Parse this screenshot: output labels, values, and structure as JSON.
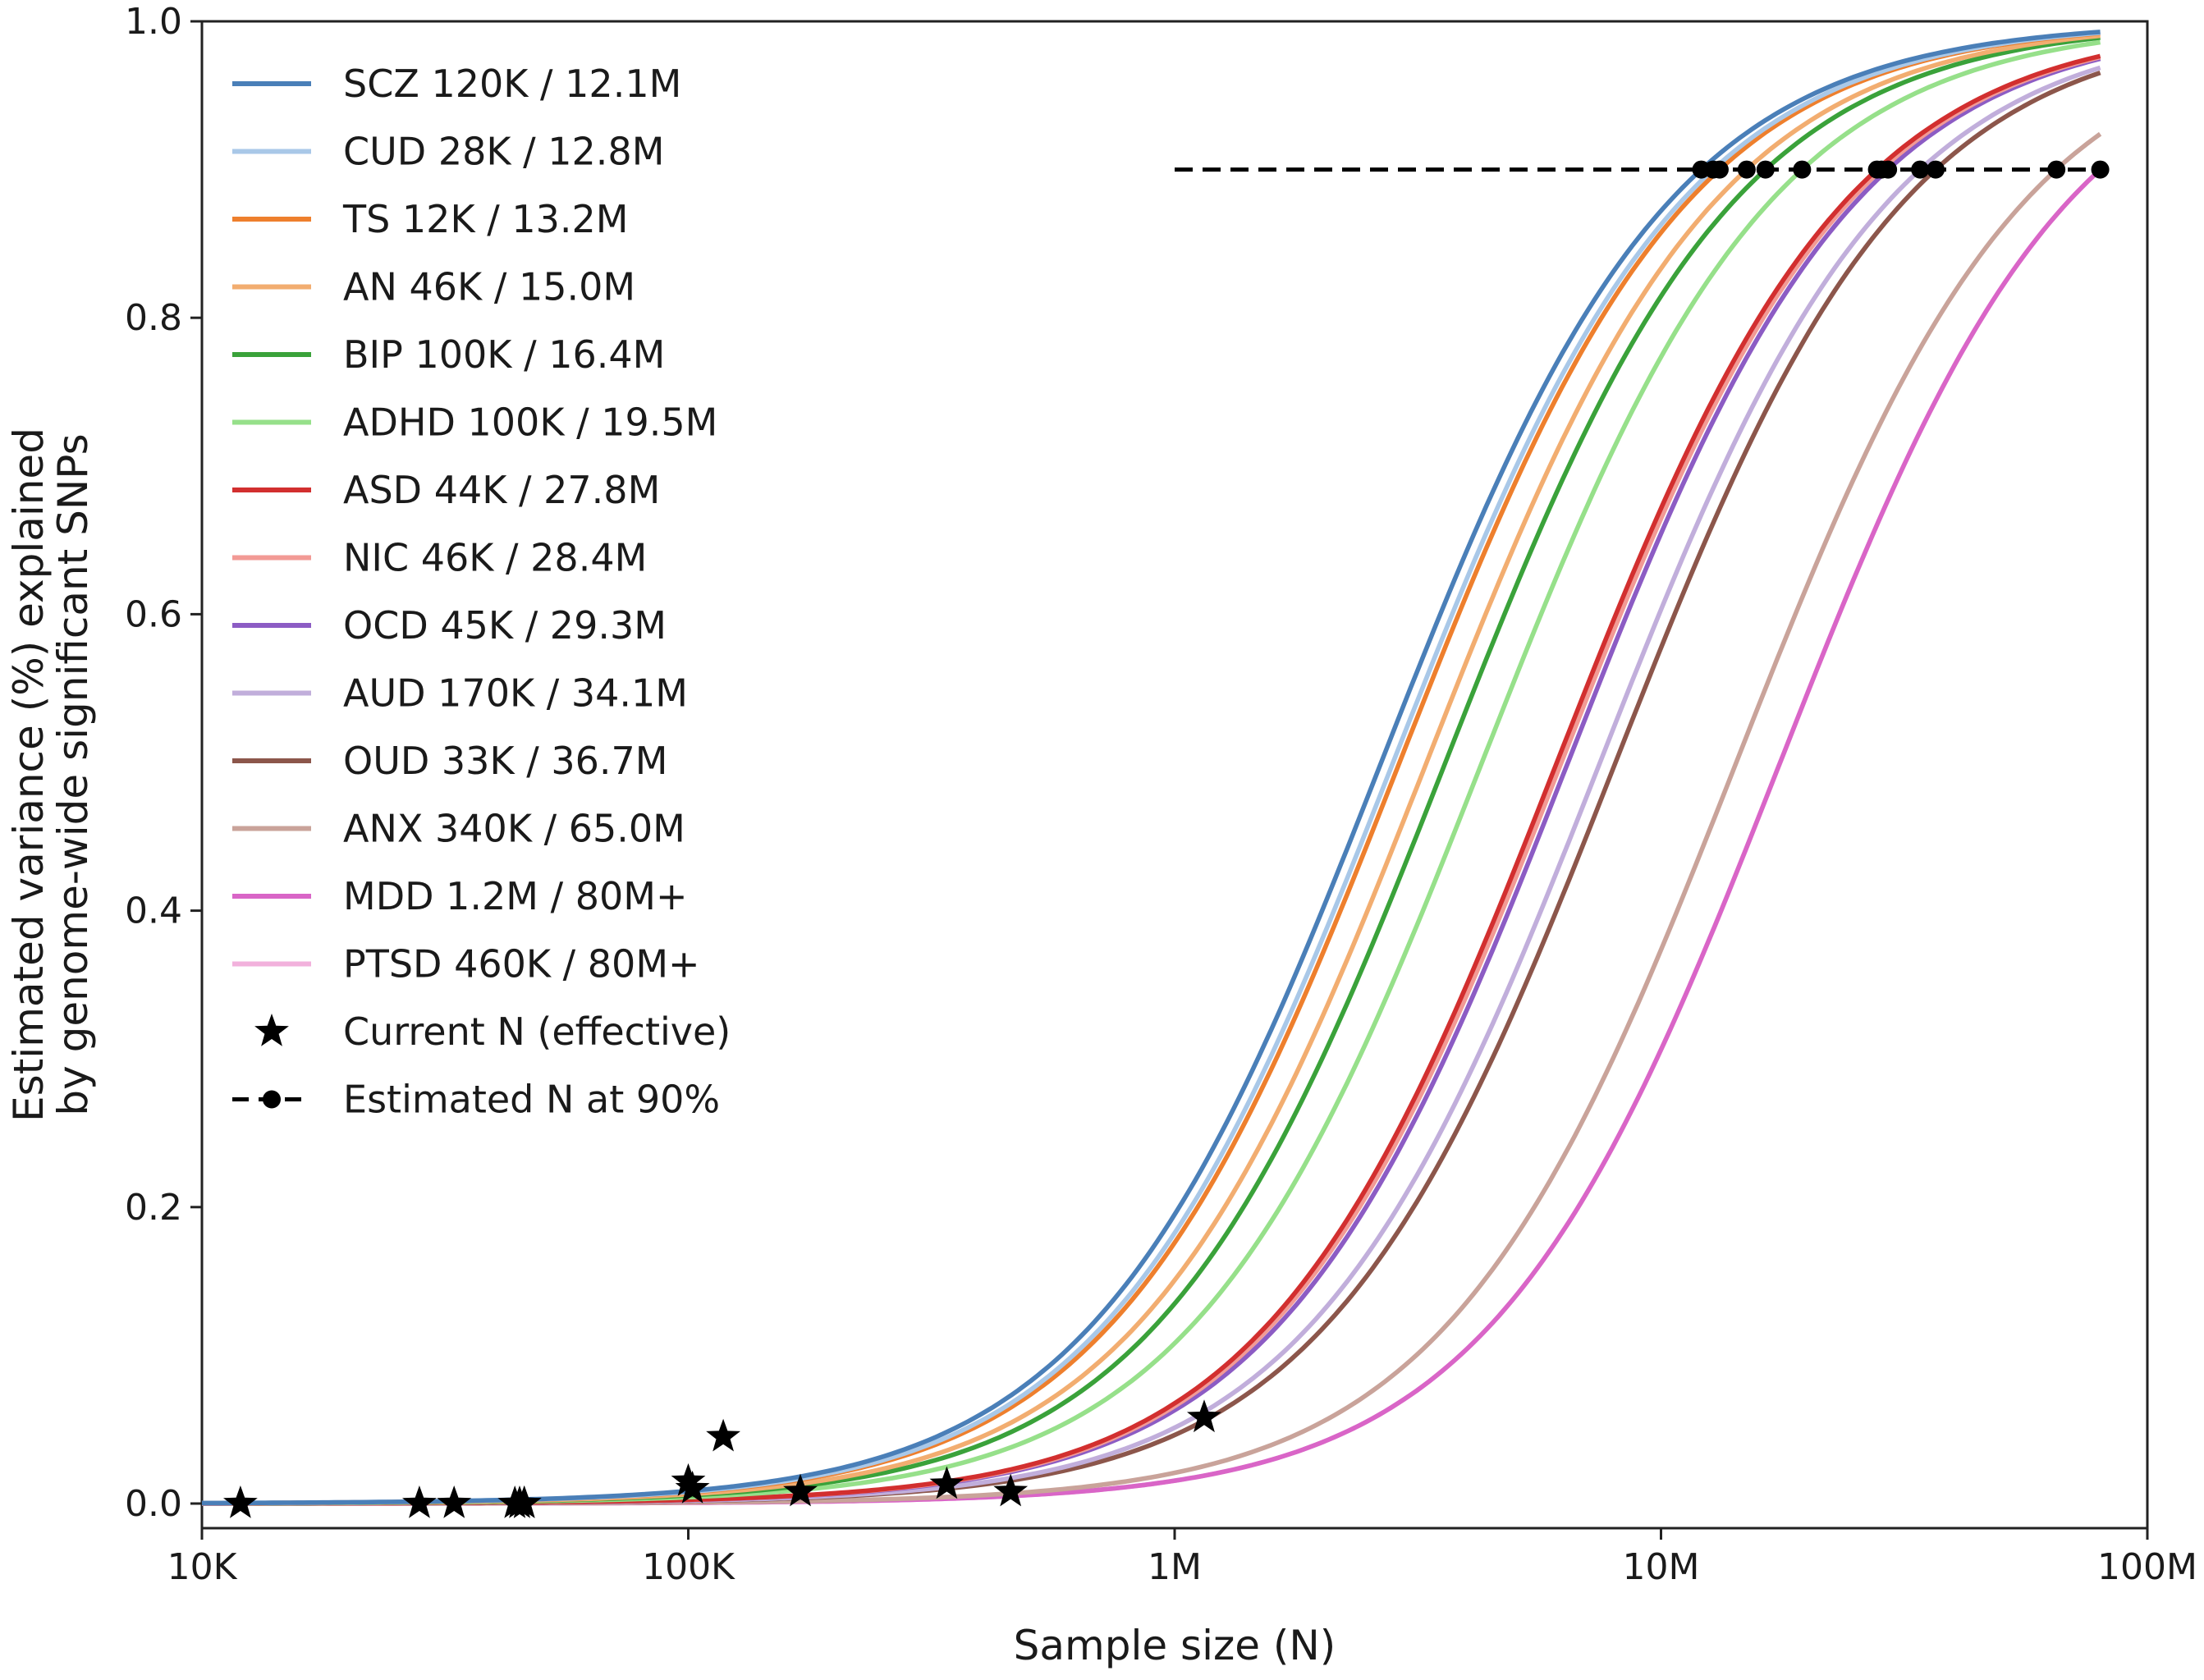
{
  "chart_data": {
    "type": "line",
    "title": "",
    "xlabel": "Sample size (N)",
    "ylabel_line1": "Estimated variance (%) explained",
    "ylabel_line2": "by genome-wide significant SNPs",
    "xscale": "log",
    "xlim": [
      10000,
      100000000
    ],
    "ylim": [
      0.0,
      1.0
    ],
    "grid": false,
    "legend_position": "upper-left",
    "x_ticks": [
      {
        "value": 10000,
        "label": "10K"
      },
      {
        "value": 100000,
        "label": "100K"
      },
      {
        "value": 1000000,
        "label": "1M"
      },
      {
        "value": 10000000,
        "label": "10M"
      },
      {
        "value": 100000000,
        "label": "100M"
      }
    ],
    "y_ticks": [
      {
        "value": 0.0,
        "label": "0.0"
      },
      {
        "value": 0.2,
        "label": "0.2"
      },
      {
        "value": 0.4,
        "label": "0.4"
      },
      {
        "value": 0.6,
        "label": "0.6"
      },
      {
        "value": 0.8,
        "label": "0.8"
      },
      {
        "value": 1.0,
        "label": "1.0"
      }
    ],
    "x_range_curves": [
      10000,
      80000000
    ],
    "series": [
      {
        "name": "SCZ 120K / 12.1M",
        "color": "#4a7fb8",
        "width": 3.5,
        "current_n": 118000,
        "n90": 12100000,
        "slope": 1.45
      },
      {
        "name": "CUD 28K / 12.8M",
        "color": "#a9c8e8",
        "width": 3.5,
        "current_n": 28000,
        "n90": 12800000,
        "slope": 1.45
      },
      {
        "name": "TS 12K / 13.2M",
        "color": "#ee7f2d",
        "width": 3.5,
        "current_n": 12000,
        "n90": 13200000,
        "slope": 1.45
      },
      {
        "name": "AN 46K / 15.0M",
        "color": "#f2ad70",
        "width": 3.5,
        "current_n": 46000,
        "n90": 15000000,
        "slope": 1.45
      },
      {
        "name": "BIP 100K / 16.4M",
        "color": "#3aa23a",
        "width": 3.5,
        "current_n": 100000,
        "n90": 16400000,
        "slope": 1.45
      },
      {
        "name": "ADHD 100K / 19.5M",
        "color": "#96e08a",
        "width": 3.5,
        "current_n": 102000,
        "n90": 19500000,
        "slope": 1.45
      },
      {
        "name": "ASD 44K / 27.8M",
        "color": "#d22f2f",
        "width": 3.5,
        "current_n": 44000,
        "n90": 27800000,
        "slope": 1.45
      },
      {
        "name": "NIC 46K / 28.4M",
        "color": "#f29a95",
        "width": 3.5,
        "current_n": 46000,
        "n90": 28400000,
        "slope": 1.45
      },
      {
        "name": "OCD 45K / 29.3M",
        "color": "#8c5cc4",
        "width": 3.5,
        "current_n": 45000,
        "n90": 29300000,
        "slope": 1.45
      },
      {
        "name": "AUD 170K / 34.1M",
        "color": "#c1aedb",
        "width": 3.5,
        "current_n": 170000,
        "n90": 34100000,
        "slope": 1.45
      },
      {
        "name": "OUD 33K / 36.7M",
        "color": "#8c564b",
        "width": 3.5,
        "current_n": 33000,
        "n90": 36700000,
        "slope": 1.45
      },
      {
        "name": "ANX 340K / 65.0M",
        "color": "#c9a39a",
        "width": 3.5,
        "current_n": 340000,
        "n90": 65000000,
        "slope": 1.45
      },
      {
        "name": "MDD 1.2M / 80M+",
        "color": "#d965c7",
        "width": 3.5,
        "current_n": 1150000,
        "n90": 80000000,
        "slope": 1.45
      },
      {
        "name": "PTSD 460K / 80M+",
        "color": "#f2b1dc",
        "width": 3.5,
        "current_n": 460000,
        "n90": 80000000,
        "slope": 1.45
      }
    ],
    "current_n_points": [
      {
        "series": "SCZ",
        "x": 118000,
        "y": 0.045
      },
      {
        "series": "CUD",
        "x": 28000,
        "y": 0.0
      },
      {
        "series": "TS",
        "x": 12000,
        "y": 0.0
      },
      {
        "series": "AN",
        "x": 46000,
        "y": 0.0
      },
      {
        "series": "BIP",
        "x": 100000,
        "y": 0.015
      },
      {
        "series": "ADHD",
        "x": 102000,
        "y": 0.01
      },
      {
        "series": "ASD",
        "x": 44000,
        "y": 0.0
      },
      {
        "series": "NIC",
        "x": 46000,
        "y": 0.0
      },
      {
        "series": "OCD",
        "x": 45000,
        "y": 0.0
      },
      {
        "series": "AUD",
        "x": 170000,
        "y": 0.008
      },
      {
        "series": "OUD",
        "x": 33000,
        "y": 0.0
      },
      {
        "series": "ANX",
        "x": 340000,
        "y": 0.013
      },
      {
        "series": "MDD",
        "x": 1150000,
        "y": 0.058
      },
      {
        "series": "PTSD",
        "x": 460000,
        "y": 0.008
      }
    ],
    "n90_line": {
      "y": 0.9,
      "x_start": 1000000,
      "x_end": 80000000,
      "points_x": [
        12100000,
        12800000,
        13200000,
        15000000,
        16400000,
        19500000,
        27800000,
        28400000,
        29300000,
        34100000,
        36700000,
        65000000,
        80000000
      ]
    },
    "legend_extra": [
      {
        "name": "Current N (effective)",
        "marker": "star"
      },
      {
        "name": "Estimated N at 90%",
        "marker": "dashed-line-dot"
      }
    ]
  }
}
